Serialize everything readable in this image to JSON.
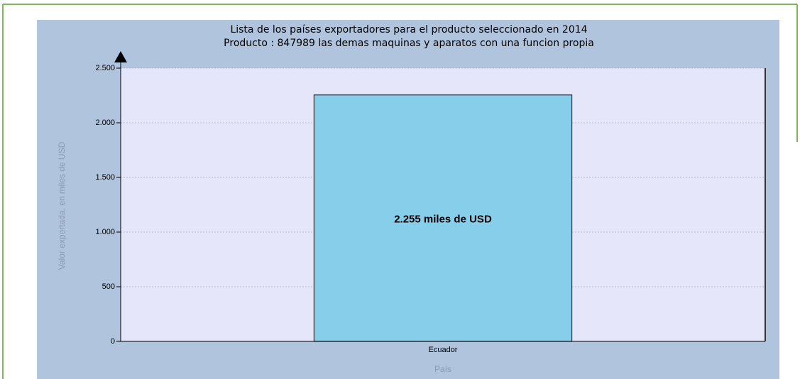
{
  "chart_data": {
    "type": "bar",
    "title": "Lista de los países exportadores para el producto seleccionado en 2014",
    "subtitle": "Producto : 847989 las demas maquinas y aparatos con una funcion propia",
    "y_label": "Valor exportada, en miles de USD",
    "x_label": "País",
    "categories": [
      "Ecuador"
    ],
    "values": [
      2255
    ],
    "value_labels": [
      "2.255 miles de USD"
    ],
    "color": "#87ceeb",
    "ylim": [
      0,
      2500
    ],
    "yticks": [
      0,
      500,
      {
        "value": 1000,
        "label": "1.000"
      },
      {
        "value": 1500,
        "label": "1.500"
      },
      {
        "value": 2000,
        "label": "2.000"
      },
      {
        "value": 2500,
        "label": "2.500"
      }
    ],
    "grid": true
  }
}
